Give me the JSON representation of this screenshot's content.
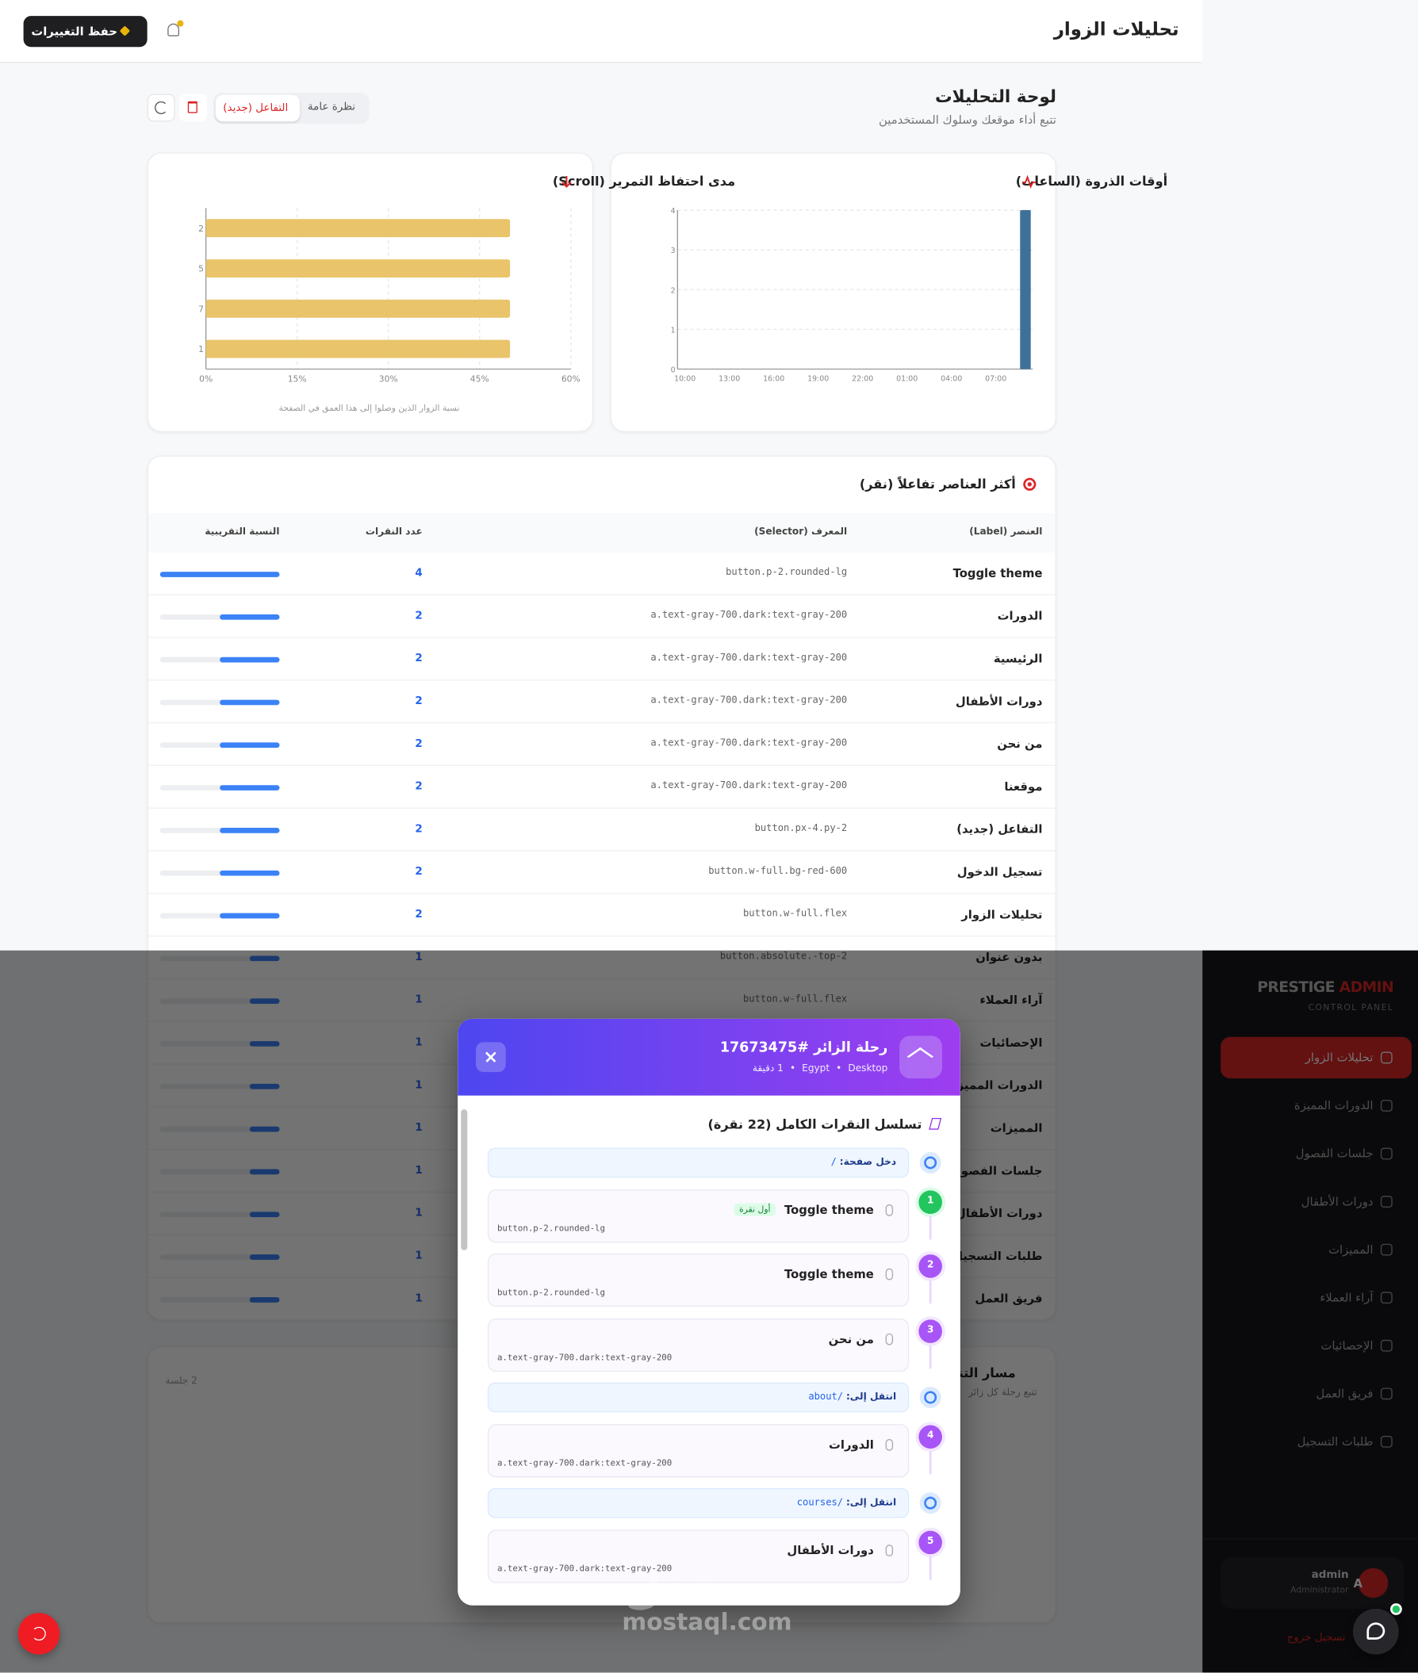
{
  "header": {
    "title": "تحليلات الزوار",
    "save_button": "حفظ التغييرات"
  },
  "dashboard": {
    "title": "لوحة التحليلات",
    "subtitle": "تتبع أداء موقعك وسلوك المستخدمين",
    "tabs": [
      "نظرة عامة",
      "التفاعل (جديد)"
    ]
  },
  "chart_data": [
    {
      "type": "bar",
      "orientation": "horizontal",
      "title": "مدى احتفاظ التمرير (Scroll)",
      "caption": "نسبة الزوار الذين وصلوا إلى هذا العمق في الصفحة",
      "categories": [
        "2",
        "5",
        "7",
        "1"
      ],
      "values": [
        50,
        50,
        50,
        50
      ],
      "color": "#e9c46a",
      "xlim": [
        0,
        60
      ],
      "xticks": [
        {
          "value": 0,
          "label": "0%"
        },
        {
          "value": 15,
          "label": "15%"
        },
        {
          "value": 30,
          "label": "30%"
        },
        {
          "value": 45,
          "label": "45%"
        },
        {
          "value": 60,
          "label": "60%"
        }
      ],
      "grid": true
    },
    {
      "type": "bar",
      "title": "أوقات الذروة (الساعات)",
      "categories": [
        "10:00",
        null,
        null,
        "13:00",
        null,
        null,
        "16:00",
        null,
        null,
        "19:00",
        null,
        null,
        "22:00",
        null,
        null,
        "01:00",
        null,
        null,
        "04:00",
        null,
        null,
        "07:00",
        null,
        null
      ],
      "values": [
        0,
        0,
        0,
        0,
        0,
        0,
        0,
        0,
        0,
        0,
        0,
        0,
        0,
        0,
        0,
        0,
        0,
        0,
        0,
        0,
        0,
        0,
        0,
        4
      ],
      "color": "#3d7199",
      "ylim": [
        0,
        4
      ],
      "yticks": [
        0,
        1,
        2,
        3,
        4
      ],
      "grid": true
    }
  ],
  "clicks_table": {
    "title": "أكثر العناصر تفاعلاً (نقر)",
    "columns": [
      "العنصر (Label)",
      "المعرف (Selector)",
      "عدد النقرات",
      "النسبة التقريبية"
    ],
    "rows": [
      {
        "label": "Toggle theme",
        "selector": "button.p-2.rounded-lg",
        "clicks": 4
      },
      {
        "label": "الدورات",
        "selector": "a.text-gray-700.dark:text-gray-200",
        "clicks": 2
      },
      {
        "label": "الرئيسية",
        "selector": "a.text-gray-700.dark:text-gray-200",
        "clicks": 2
      },
      {
        "label": "دورات الأطفال",
        "selector": "a.text-gray-700.dark:text-gray-200",
        "clicks": 2
      },
      {
        "label": "من نحن",
        "selector": "a.text-gray-700.dark:text-gray-200",
        "clicks": 2
      },
      {
        "label": "موقعنا",
        "selector": "a.text-gray-700.dark:text-gray-200",
        "clicks": 2
      },
      {
        "label": "التفاعل (جديد)",
        "selector": "button.px-4.py-2",
        "clicks": 2
      },
      {
        "label": "تسجيل الدخول",
        "selector": "button.w-full.bg-red-600",
        "clicks": 2
      },
      {
        "label": "تحليلات الزوار",
        "selector": "button.w-full.flex",
        "clicks": 2
      },
      {
        "label": "بدون عنوان",
        "selector": "button.absolute.-top-2",
        "clicks": 1
      },
      {
        "label": "آراء العملاء",
        "selector": "button.w-full.flex",
        "clicks": 1
      },
      {
        "label": "الإحصائيات",
        "clicks": 1
      },
      {
        "label": "الدورات المميزة",
        "clicks": 1
      },
      {
        "label": "المميزات",
        "clicks": 1
      },
      {
        "label": "جلسات الفصول",
        "clicks": 1
      },
      {
        "label": "دورات الأطفال",
        "clicks": 1
      },
      {
        "label": "طلبات التسجيل",
        "clicks": 1
      },
      {
        "label": "فريق العمل",
        "clicks": 1
      }
    ]
  },
  "journey_card": {
    "title": "مسار التنقل",
    "subtitle": "تتبع رحلة كل زائر",
    "count": "2 جلسة"
  },
  "sidebar": {
    "brand": "PRESTIGE",
    "brand_accent": "ADMIN",
    "tagline": "CONTROL PANEL",
    "menu": [
      "تحليلات الزوار",
      "الدورات المميزة",
      "جلسات الفصول",
      "دورات الأطفال",
      "المميزات",
      "آراء العملاء",
      "الإحصائيات",
      "فريق العمل",
      "طلبات التسجيل"
    ],
    "user": {
      "name": "admin",
      "role": "Administrator",
      "initial": "A"
    },
    "logout": "تسجيل خروج"
  },
  "modal": {
    "title": "رحلة الزائر #17673475",
    "device": "Desktop",
    "country": "Egypt",
    "duration": "1 دقيقة",
    "section_title": "تسلسل النقرات الكامل (22 نقرة)",
    "steps": [
      {
        "type": "page",
        "label": "دخل صفحة:",
        "path": "/"
      },
      {
        "type": "click",
        "number": 1,
        "label": "Toggle theme",
        "badge": "أول نقرة",
        "selector": "button.p-2.rounded-lg"
      },
      {
        "type": "click",
        "number": 2,
        "label": "Toggle theme",
        "selector": "button.p-2.rounded-lg"
      },
      {
        "type": "click",
        "number": 3,
        "label": "من نحن",
        "selector": "a.text-gray-700.dark:text-gray-200"
      },
      {
        "type": "page",
        "label": "انتقل إلى:",
        "path": "/about"
      },
      {
        "type": "click",
        "number": 4,
        "label": "الدورات",
        "selector": "a.text-gray-700.dark:text-gray-200"
      },
      {
        "type": "page",
        "label": "انتقل إلى:",
        "path": "/courses"
      },
      {
        "type": "click",
        "number": 5,
        "label": "دورات الأطفال",
        "selector": "a.text-gray-700.dark:text-gray-200"
      }
    ]
  },
  "watermark": {
    "arabic": "مستقل",
    "latin": "mostaql.com"
  }
}
